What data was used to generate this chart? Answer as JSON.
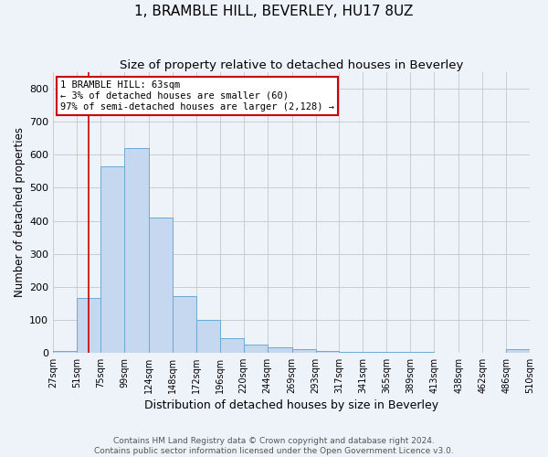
{
  "title": "1, BRAMBLE HILL, BEVERLEY, HU17 8UZ",
  "subtitle": "Size of property relative to detached houses in Beverley",
  "xlabel": "Distribution of detached houses by size in Beverley",
  "ylabel": "Number of detached properties",
  "bar_color": "#c5d8f0",
  "bar_edge_color": "#6aaad4",
  "annotation_line_color": "#cc0000",
  "annotation_box_color": "#cc0000",
  "annotation_text": "1 BRAMBLE HILL: 63sqm\n← 3% of detached houses are smaller (60)\n97% of semi-detached houses are larger (2,128) →",
  "property_line_x": 63,
  "footer": "Contains HM Land Registry data © Crown copyright and database right 2024.\nContains public sector information licensed under the Open Government Licence v3.0.",
  "bin_edges": [
    27,
    51,
    75,
    99,
    124,
    148,
    172,
    196,
    220,
    244,
    269,
    293,
    317,
    341,
    365,
    389,
    413,
    438,
    462,
    486,
    510
  ],
  "bar_heights": [
    5,
    165,
    565,
    620,
    410,
    170,
    100,
    45,
    25,
    15,
    10,
    5,
    3,
    2,
    1,
    1,
    0,
    0,
    0,
    10
  ],
  "ylim": [
    0,
    850
  ],
  "yticks": [
    0,
    100,
    200,
    300,
    400,
    500,
    600,
    700,
    800
  ],
  "background_color": "#eef2f9",
  "plot_background": "#eef2f9",
  "grid_color": "#cccccc",
  "title_fontsize": 11,
  "subtitle_fontsize": 9.5,
  "ylabel_fontsize": 8.5,
  "xlabel_fontsize": 9,
  "tick_fontsize": 7,
  "footer_fontsize": 6.5
}
